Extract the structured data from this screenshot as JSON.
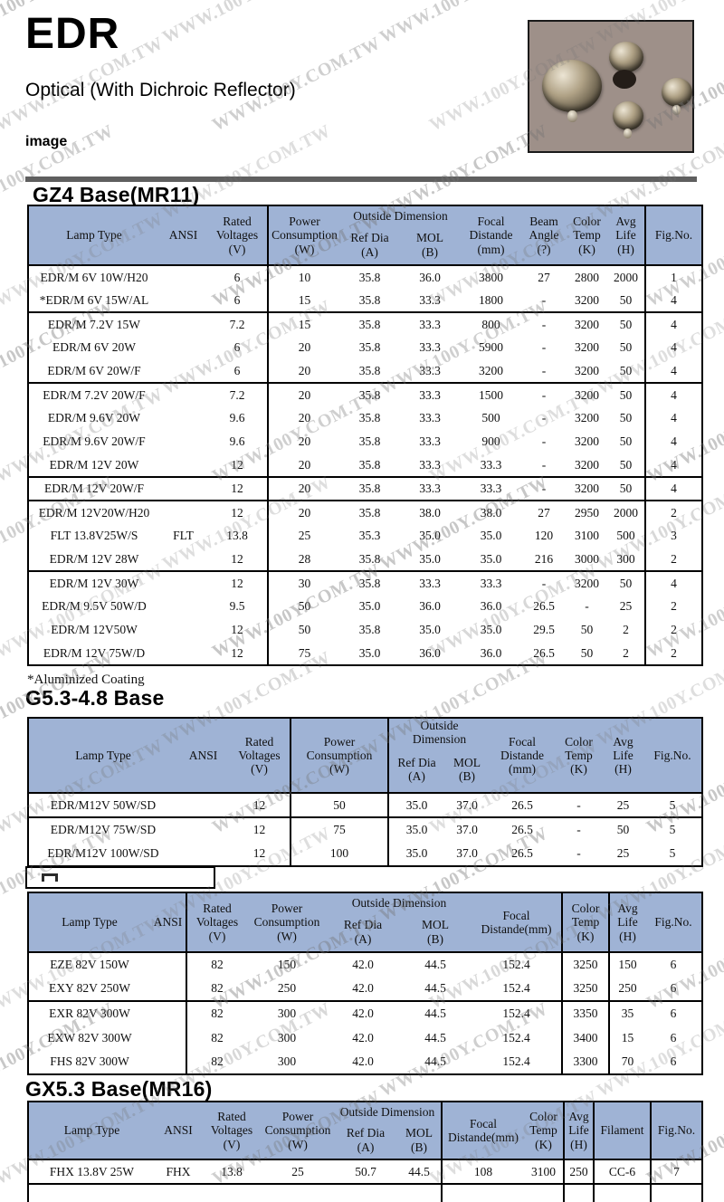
{
  "page": {
    "title": "EDR",
    "subtitle": "Optical (With Dichroic Reflector)",
    "image_label": "image",
    "footnote": "*Aluminized Coating"
  },
  "watermark": {
    "text": "WWW.100Y.COM.TW"
  },
  "sections": {
    "gz4": {
      "heading": "GZ4 Base(MR11)"
    },
    "g53": {
      "heading": "G5.3-4.8 Base"
    },
    "gx53": {
      "heading": "GX5.3 Base(MR16)"
    }
  },
  "table1": {
    "h": {
      "lamp": "Lamp Type",
      "ansi": "ANSI",
      "rated": "Rated\nVoltages\n(V)",
      "power": "Power\nConsumption\n(W)",
      "outside": "Outside Dimension",
      "refdia": "Ref Dia\n(A)",
      "mol": "MOL\n(B)",
      "focal": "Focal\nDistande\n(mm)",
      "beam": "Beam\nAngle\n(?)",
      "ct": "Color\nTemp\n(K)",
      "life": "Avg\nLife\n(H)",
      "fig": "Fig.No."
    },
    "rows": [
      {
        "g": false,
        "c": [
          "EDR/M 6V 10W/H20",
          "",
          "6",
          "10",
          "35.8",
          "36.0",
          "3800",
          "27",
          "2800",
          "2000",
          "1"
        ]
      },
      {
        "g": false,
        "c": [
          "*EDR/M 6V 15W/AL",
          "",
          "6",
          "15",
          "35.8",
          "33.3",
          "1800",
          "-",
          "3200",
          "50",
          "4"
        ]
      },
      {
        "g": true,
        "c": [
          "EDR/M 7.2V 15W",
          "",
          "7.2",
          "15",
          "35.8",
          "33.3",
          "800",
          "-",
          "3200",
          "50",
          "4"
        ]
      },
      {
        "g": false,
        "c": [
          "EDR/M 6V 20W",
          "",
          "6",
          "20",
          "35.8",
          "33.3",
          "5900",
          "-",
          "3200",
          "50",
          "4"
        ]
      },
      {
        "g": false,
        "c": [
          "EDR/M 6V 20W/F",
          "",
          "6",
          "20",
          "35.8",
          "33.3",
          "3200",
          "-",
          "3200",
          "50",
          "4"
        ]
      },
      {
        "g": true,
        "c": [
          "EDR/M 7.2V 20W/F",
          "",
          "7.2",
          "20",
          "35.8",
          "33.3",
          "1500",
          "-",
          "3200",
          "50",
          "4"
        ]
      },
      {
        "g": false,
        "c": [
          "EDR/M 9.6V 20W",
          "",
          "9.6",
          "20",
          "35.8",
          "33.3",
          "500",
          "-",
          "3200",
          "50",
          "4"
        ]
      },
      {
        "g": false,
        "c": [
          "EDR/M 9.6V 20W/F",
          "",
          "9.6",
          "20",
          "35.8",
          "33.3",
          "900",
          "-",
          "3200",
          "50",
          "4"
        ]
      },
      {
        "g": false,
        "c": [
          "EDR/M 12V 20W",
          "",
          "12",
          "20",
          "35.8",
          "33.3",
          "33.3",
          "-",
          "3200",
          "50",
          "4"
        ]
      },
      {
        "g": true,
        "c": [
          "EDR/M 12V 20W/F",
          "",
          "12",
          "20",
          "35.8",
          "33.3",
          "33.3",
          "-",
          "3200",
          "50",
          "4"
        ]
      },
      {
        "g": true,
        "c": [
          "EDR/M 12V20W/H20",
          "",
          "12",
          "20",
          "35.8",
          "38.0",
          "38.0",
          "27",
          "2950",
          "2000",
          "2"
        ]
      },
      {
        "g": false,
        "c": [
          "FLT 13.8V25W/S",
          "FLT",
          "13.8",
          "25",
          "35.3",
          "35.0",
          "35.0",
          "120",
          "3100",
          "500",
          "3"
        ]
      },
      {
        "g": false,
        "c": [
          "EDR/M 12V 28W",
          "",
          "12",
          "28",
          "35.8",
          "35.0",
          "35.0",
          "216",
          "3000",
          "300",
          "2"
        ]
      },
      {
        "g": true,
        "c": [
          "EDR/M 12V 30W",
          "",
          "12",
          "30",
          "35.8",
          "33.3",
          "33.3",
          "-",
          "3200",
          "50",
          "4"
        ]
      },
      {
        "g": false,
        "c": [
          "EDR/M 9.5V 50W/D",
          "",
          "9.5",
          "50",
          "35.0",
          "36.0",
          "36.0",
          "26.5",
          "-",
          "25",
          "2"
        ]
      },
      {
        "g": false,
        "c": [
          "EDR/M 12V50W",
          "",
          "12",
          "50",
          "35.8",
          "35.0",
          "35.0",
          "29.5",
          "50",
          "2",
          "2"
        ]
      },
      {
        "g": false,
        "c": [
          "EDR/M 12V 75W/D",
          "",
          "12",
          "75",
          "35.0",
          "36.0",
          "36.0",
          "26.5",
          "50",
          "2",
          "2"
        ]
      }
    ]
  },
  "table2": {
    "h": {
      "lamp": "Lamp Type",
      "ansi": "ANSI",
      "rated": "Rated\nVoltages\n(V)",
      "power": "Power\nConsumption\n(W)",
      "outside": "Outside\nDimension",
      "refdia": "Ref Dia\n(A)",
      "mol": "MOL\n(B)",
      "focal": "Focal\nDistande\n(mm)",
      "ct": "Color\nTemp\n(K)",
      "life": "Avg\nLife\n(H)",
      "fig": "Fig.No."
    },
    "rows": [
      {
        "g": false,
        "c": [
          "EDR/M12V 50W/SD",
          "",
          "12",
          "50",
          "35.0",
          "37.0",
          "26.5",
          "-",
          "25",
          "5"
        ]
      },
      {
        "g": true,
        "c": [
          "EDR/M12V 75W/SD",
          "",
          "12",
          "75",
          "35.0",
          "37.0",
          "26.5",
          "-",
          "50",
          "5"
        ]
      },
      {
        "g": false,
        "c": [
          "EDR/M12V 100W/SD",
          "",
          "12",
          "100",
          "35.0",
          "37.0",
          "26.5",
          "-",
          "25",
          "5"
        ]
      }
    ]
  },
  "table3": {
    "h": {
      "lamp": "Lamp Type",
      "ansi": "ANSI",
      "rated": "Rated\nVoltages\n(V)",
      "power": "Power\nConsumption\n(W)",
      "outside": "Outside Dimension",
      "refdia": "Ref Dia\n(A)",
      "mol": "MOL\n(B)",
      "focal": "Focal\nDistande(mm)",
      "ct": "Color\nTemp\n(K)",
      "life": "Avg\nLife\n(H)",
      "fig": "Fig.No."
    },
    "rows": [
      {
        "g": false,
        "c": [
          "EZE 82V 150W",
          "",
          "82",
          "150",
          "42.0",
          "44.5",
          "152.4",
          "3250",
          "150",
          "6"
        ]
      },
      {
        "g": false,
        "c": [
          "EXY 82V 250W",
          "",
          "82",
          "250",
          "42.0",
          "44.5",
          "152.4",
          "3250",
          "250",
          "6"
        ]
      },
      {
        "g": true,
        "c": [
          "EXR 82V 300W",
          "",
          "82",
          "300",
          "42.0",
          "44.5",
          "152.4",
          "3350",
          "35",
          "6"
        ]
      },
      {
        "g": false,
        "c": [
          "EXW 82V 300W",
          "",
          "82",
          "300",
          "42.0",
          "44.5",
          "152.4",
          "3400",
          "15",
          "6"
        ]
      },
      {
        "g": false,
        "c": [
          "FHS 82V 300W",
          "",
          "82",
          "300",
          "42.0",
          "44.5",
          "152.4",
          "3300",
          "70",
          "6"
        ]
      }
    ]
  },
  "table4": {
    "h": {
      "lamp": "Lamp Type",
      "ansi": "ANSI",
      "rated": "Rated\nVoltages\n(V)",
      "power": "Power\nConsumption\n(W)",
      "outside": "Outside Dimension",
      "refdia": "Ref Dia\n(A)",
      "mol": "MOL\n(B)",
      "focal": "Focal\nDistande(mm)",
      "ct": "Color\nTemp\n(K)",
      "life": "Avg\nLife\n(H)",
      "filament": "Filament",
      "fig": "Fig.No."
    },
    "rows": [
      {
        "g": false,
        "c": [
          "FHX 13.8V 25W",
          "FHX",
          "13.8",
          "25",
          "50.7",
          "44.5",
          "108",
          "3100",
          "250",
          "CC-6",
          "7"
        ]
      },
      {
        "g": true,
        "tail": true,
        "c": [
          "",
          "",
          "",
          "",
          "",
          "",
          "",
          "",
          "",
          "",
          ""
        ]
      }
    ]
  },
  "colors": {
    "header_blue": "#9fb3d5",
    "rule_gray": "#5f5f5f",
    "photo_bg": "#9e9089"
  }
}
